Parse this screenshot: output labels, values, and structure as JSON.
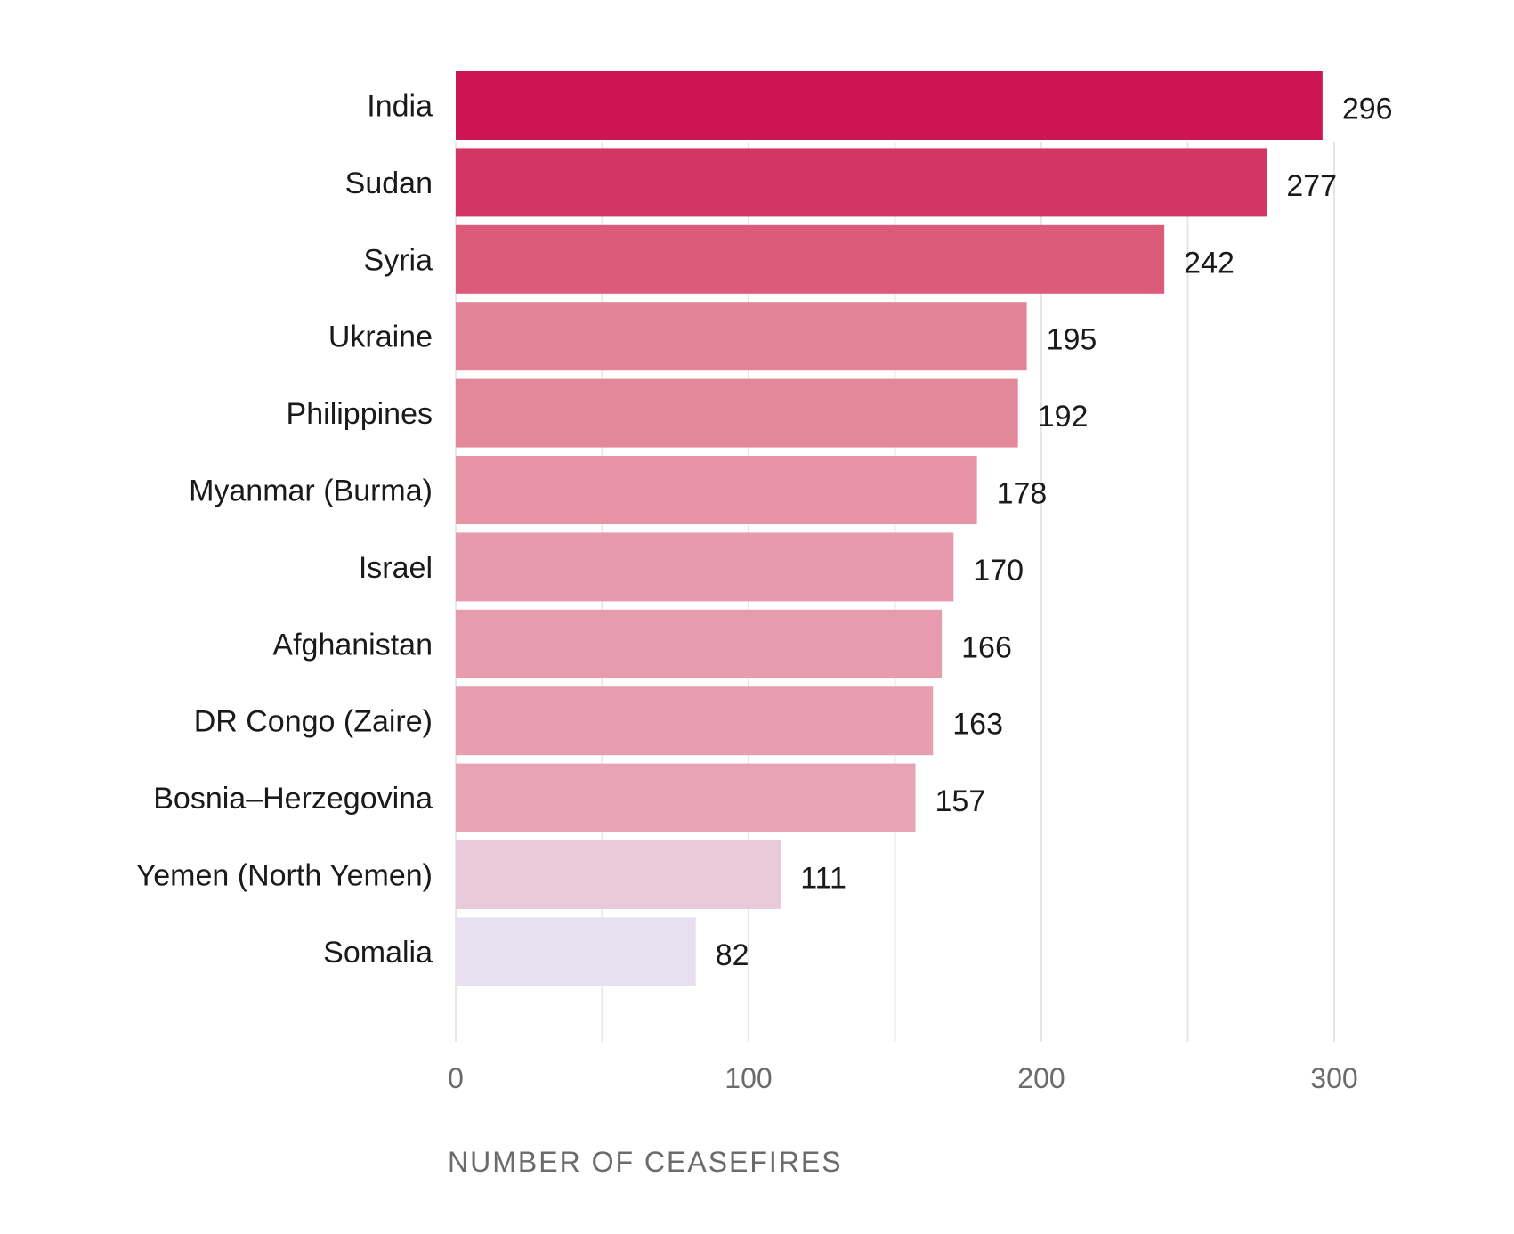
{
  "chart_data": {
    "type": "bar",
    "orientation": "horizontal",
    "categories": [
      "India",
      "Sudan",
      "Syria",
      "Ukraine",
      "Philippines",
      "Myanmar (Burma)",
      "Israel",
      "Afghanistan",
      "DR Congo (Zaire)",
      "Bosnia–Herzegovina",
      "Yemen (North Yemen)",
      "Somalia"
    ],
    "values": [
      296,
      277,
      242,
      195,
      192,
      178,
      170,
      166,
      163,
      157,
      111,
      82
    ],
    "colors": [
      "#cc1552",
      "#d33662",
      "#dc5b7a",
      "#e28398",
      "#e3889b",
      "#e693a5",
      "#e79aab",
      "#e79cad",
      "#e79fb0",
      "#e8a4b3",
      "#e9cad9",
      "#e7e0ef"
    ],
    "xlabel": "NUMBER OF CEASEFIRES",
    "xlim": [
      0,
      300
    ],
    "xticks": [
      0,
      100,
      200,
      300
    ],
    "xtick_labels": [
      "0",
      "100",
      "200",
      "300"
    ],
    "grid": true
  }
}
